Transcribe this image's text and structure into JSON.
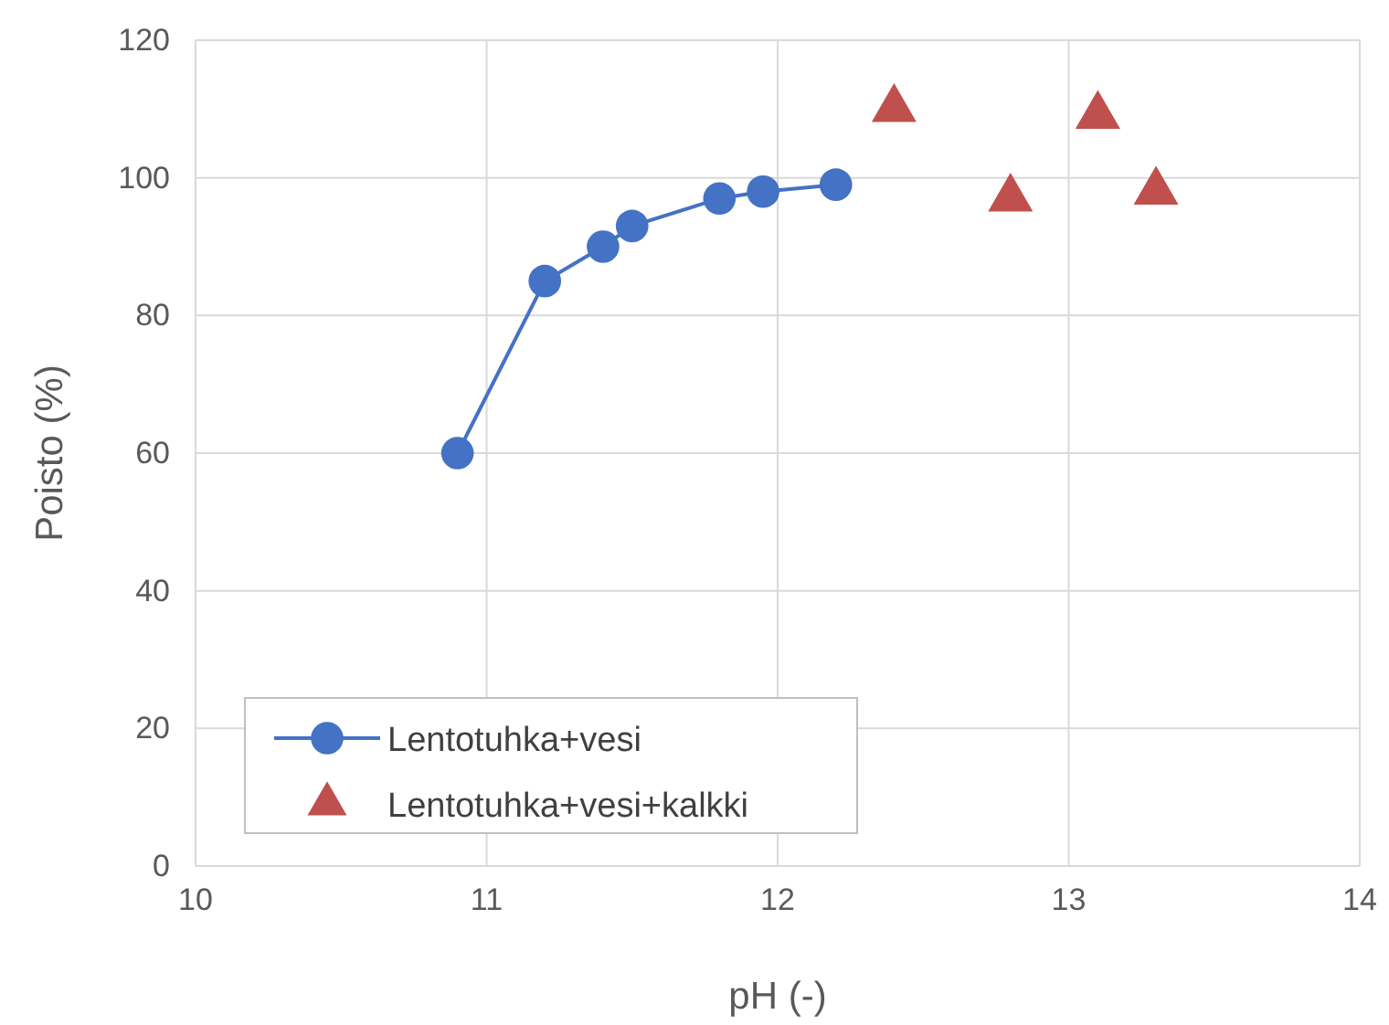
{
  "chart_data": {
    "type": "line",
    "xlabel": "pH (-)",
    "ylabel": "Poisto (%)",
    "xlim": [
      10,
      14
    ],
    "xticks": [
      10,
      11,
      12,
      13,
      14
    ],
    "ylim": [
      0,
      120
    ],
    "yticks": [
      0,
      20,
      40,
      60,
      80,
      100,
      120
    ],
    "grid": true,
    "legend": "bottom left",
    "series": [
      {
        "name": "Lentotuhka+vesi",
        "marker": "circle",
        "color": "#4472c4",
        "x": [
          10.9,
          11.2,
          11.4,
          11.5,
          11.8,
          11.95,
          12.2
        ],
        "values": [
          60,
          85,
          90,
          93,
          97,
          98,
          99
        ]
      },
      {
        "name": "Lentotuhka+vesi+kalkki",
        "type": "scatter",
        "marker": "triangle",
        "color": "#c0504d",
        "x": [
          12.4,
          12.8,
          13.1,
          13.3
        ],
        "values": [
          110,
          97,
          109,
          98
        ]
      }
    ]
  }
}
